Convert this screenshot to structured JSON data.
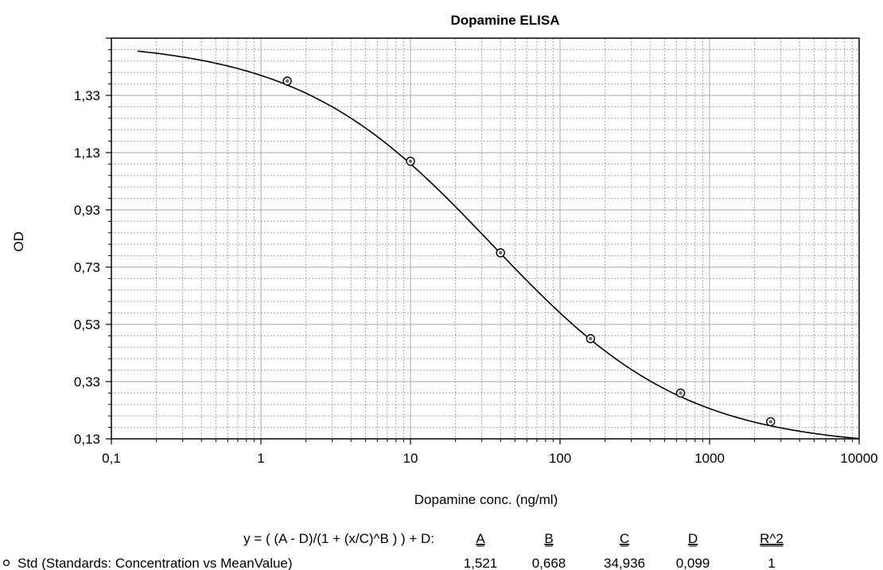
{
  "chart_data": {
    "type": "scatter",
    "title": "Dopamine ELISA",
    "xlabel": "Dopamine conc. (ng/ml)",
    "ylabel": "OD",
    "x_scale": "log",
    "xlim": [
      0.1,
      10000
    ],
    "ylim": [
      0.13,
      1.53
    ],
    "x_ticks": [
      "0,1",
      "1",
      "10",
      "100",
      "1000",
      "10000"
    ],
    "y_ticks": [
      "0,13",
      "0,33",
      "0,53",
      "0,73",
      "0,93",
      "1,13",
      "1,33"
    ],
    "grid": true,
    "series": [
      {
        "name": "Std (Standards: Concentration vs MeanValue)",
        "x": [
          1.5,
          10,
          40,
          160,
          640,
          2560
        ],
        "y": [
          1.38,
          1.1,
          0.78,
          0.48,
          0.29,
          0.19
        ]
      }
    ],
    "fit": {
      "equation": "y = ( (A - D)/(1 + (x/C)^B ) ) + D:",
      "headers": [
        "A",
        "B",
        "C",
        "D",
        "R^2"
      ],
      "values": [
        "1,521",
        "0,668",
        "34,936",
        "0,099",
        "1"
      ],
      "params": {
        "A": 1.521,
        "B": 0.668,
        "C": 34.936,
        "D": 0.099
      }
    },
    "colors": {
      "line": "#000000",
      "grid": "#a8a8a8",
      "marker": "#000000"
    }
  }
}
